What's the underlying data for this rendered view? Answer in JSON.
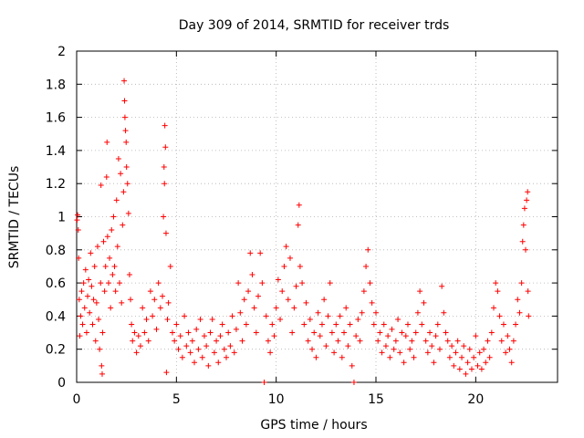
{
  "chart_data": {
    "type": "scatter",
    "title": "Day 309 of 2014, SRMTID for receiver trds",
    "xlabel": "GPS time / hours",
    "ylabel": "SRMTID / TECUs",
    "xlim": [
      0,
      24.1
    ],
    "ylim": [
      0,
      2
    ],
    "xticks": [
      0,
      5,
      10,
      15,
      20
    ],
    "xtick_labels": [
      "0",
      "5",
      "10",
      "15",
      "20"
    ],
    "yticks": [
      0,
      0.2,
      0.4,
      0.6,
      0.8,
      1,
      1.2,
      1.4,
      1.6,
      1.8,
      2
    ],
    "ytick_labels": [
      "0",
      "0.2",
      "0.4",
      "0.6",
      "0.8",
      "1",
      "1.2",
      "1.4",
      "1.6",
      "1.8",
      "2"
    ],
    "grid": true,
    "marker": "+",
    "marker_color": "#ff0000",
    "series": [
      {
        "name": "trds",
        "points": [
          [
            0.02,
            0.98
          ],
          [
            0.05,
            1.01
          ],
          [
            0.08,
            0.92
          ],
          [
            0.1,
            0.75
          ],
          [
            0.13,
            0.5
          ],
          [
            0.16,
            0.28
          ],
          [
            0.2,
            0.4
          ],
          [
            0.25,
            0.55
          ],
          [
            0.3,
            0.35
          ],
          [
            0.35,
            0.6
          ],
          [
            0.4,
            0.45
          ],
          [
            0.45,
            0.68
          ],
          [
            0.5,
            0.3
          ],
          [
            0.55,
            0.52
          ],
          [
            0.6,
            0.62
          ],
          [
            0.65,
            0.42
          ],
          [
            0.7,
            0.78
          ],
          [
            0.75,
            0.58
          ],
          [
            0.8,
            0.35
          ],
          [
            0.85,
            0.5
          ],
          [
            0.9,
            0.7
          ],
          [
            0.95,
            0.25
          ],
          [
            1.0,
            0.48
          ],
          [
            1.05,
            0.82
          ],
          [
            1.1,
            0.38
          ],
          [
            1.15,
            0.2
          ],
          [
            1.2,
            0.6
          ],
          [
            1.22,
            1.19
          ],
          [
            1.25,
            0.1
          ],
          [
            1.28,
            0.05
          ],
          [
            1.3,
            0.3
          ],
          [
            1.35,
            0.85
          ],
          [
            1.4,
            0.55
          ],
          [
            1.45,
            0.7
          ],
          [
            1.5,
            1.24
          ],
          [
            1.52,
            1.45
          ],
          [
            1.55,
            0.88
          ],
          [
            1.6,
            0.6
          ],
          [
            1.65,
            0.75
          ],
          [
            1.7,
            0.45
          ],
          [
            1.75,
            0.92
          ],
          [
            1.8,
            0.65
          ],
          [
            1.85,
            1.0
          ],
          [
            1.9,
            0.7
          ],
          [
            1.95,
            0.55
          ],
          [
            2.0,
            1.1
          ],
          [
            2.05,
            0.82
          ],
          [
            2.1,
            1.35
          ],
          [
            2.15,
            0.6
          ],
          [
            2.2,
            1.26
          ],
          [
            2.25,
            0.48
          ],
          [
            2.3,
            0.95
          ],
          [
            2.35,
            1.15
          ],
          [
            2.38,
            1.82
          ],
          [
            2.4,
            1.7
          ],
          [
            2.42,
            1.6
          ],
          [
            2.45,
            1.52
          ],
          [
            2.48,
            1.45
          ],
          [
            2.5,
            1.3
          ],
          [
            2.55,
            1.2
          ],
          [
            2.6,
            1.02
          ],
          [
            2.65,
            0.65
          ],
          [
            2.7,
            0.5
          ],
          [
            2.75,
            0.35
          ],
          [
            2.8,
            0.25
          ],
          [
            2.9,
            0.3
          ],
          [
            3.0,
            0.18
          ],
          [
            3.1,
            0.28
          ],
          [
            3.2,
            0.22
          ],
          [
            3.3,
            0.45
          ],
          [
            3.4,
            0.3
          ],
          [
            3.5,
            0.38
          ],
          [
            3.6,
            0.25
          ],
          [
            3.7,
            0.55
          ],
          [
            3.8,
            0.4
          ],
          [
            3.9,
            0.5
          ],
          [
            4.0,
            0.32
          ],
          [
            4.1,
            0.6
          ],
          [
            4.2,
            0.45
          ],
          [
            4.3,
            0.52
          ],
          [
            4.35,
            1.0
          ],
          [
            4.38,
            1.3
          ],
          [
            4.4,
            1.2
          ],
          [
            4.42,
            1.55
          ],
          [
            4.45,
            1.42
          ],
          [
            4.48,
            0.9
          ],
          [
            4.5,
            0.06
          ],
          [
            4.55,
            0.38
          ],
          [
            4.6,
            0.48
          ],
          [
            4.7,
            0.7
          ],
          [
            4.8,
            0.3
          ],
          [
            4.9,
            0.25
          ],
          [
            5.0,
            0.35
          ],
          [
            5.1,
            0.2
          ],
          [
            5.2,
            0.28
          ],
          [
            5.3,
            0.15
          ],
          [
            5.4,
            0.4
          ],
          [
            5.5,
            0.22
          ],
          [
            5.6,
            0.3
          ],
          [
            5.7,
            0.18
          ],
          [
            5.8,
            0.25
          ],
          [
            5.9,
            0.12
          ],
          [
            6.0,
            0.32
          ],
          [
            6.1,
            0.2
          ],
          [
            6.2,
            0.38
          ],
          [
            6.3,
            0.15
          ],
          [
            6.4,
            0.28
          ],
          [
            6.5,
            0.22
          ],
          [
            6.6,
            0.1
          ],
          [
            6.7,
            0.3
          ],
          [
            6.8,
            0.38
          ],
          [
            6.9,
            0.18
          ],
          [
            7.0,
            0.25
          ],
          [
            7.1,
            0.12
          ],
          [
            7.2,
            0.28
          ],
          [
            7.3,
            0.35
          ],
          [
            7.4,
            0.2
          ],
          [
            7.5,
            0.15
          ],
          [
            7.6,
            0.3
          ],
          [
            7.7,
            0.22
          ],
          [
            7.8,
            0.4
          ],
          [
            7.9,
            0.18
          ],
          [
            8.0,
            0.32
          ],
          [
            8.1,
            0.6
          ],
          [
            8.2,
            0.42
          ],
          [
            8.3,
            0.25
          ],
          [
            8.4,
            0.5
          ],
          [
            8.5,
            0.35
          ],
          [
            8.6,
            0.55
          ],
          [
            8.7,
            0.78
          ],
          [
            8.8,
            0.65
          ],
          [
            8.9,
            0.45
          ],
          [
            9.0,
            0.3
          ],
          [
            9.1,
            0.52
          ],
          [
            9.2,
            0.78
          ],
          [
            9.3,
            0.6
          ],
          [
            9.4,
            0.0
          ],
          [
            9.5,
            0.4
          ],
          [
            9.6,
            0.25
          ],
          [
            9.7,
            0.18
          ],
          [
            9.8,
            0.35
          ],
          [
            9.9,
            0.28
          ],
          [
            10.0,
            0.45
          ],
          [
            10.1,
            0.62
          ],
          [
            10.2,
            0.38
          ],
          [
            10.3,
            0.55
          ],
          [
            10.4,
            0.7
          ],
          [
            10.5,
            0.82
          ],
          [
            10.6,
            0.5
          ],
          [
            10.7,
            0.75
          ],
          [
            10.8,
            0.3
          ],
          [
            10.9,
            0.45
          ],
          [
            11.0,
            0.58
          ],
          [
            11.1,
            0.95
          ],
          [
            11.15,
            1.07
          ],
          [
            11.2,
            0.7
          ],
          [
            11.3,
            0.6
          ],
          [
            11.4,
            0.35
          ],
          [
            11.5,
            0.48
          ],
          [
            11.6,
            0.25
          ],
          [
            11.7,
            0.38
          ],
          [
            11.8,
            0.2
          ],
          [
            11.9,
            0.3
          ],
          [
            12.0,
            0.15
          ],
          [
            12.1,
            0.42
          ],
          [
            12.2,
            0.28
          ],
          [
            12.3,
            0.35
          ],
          [
            12.4,
            0.5
          ],
          [
            12.5,
            0.22
          ],
          [
            12.6,
            0.4
          ],
          [
            12.7,
            0.6
          ],
          [
            12.8,
            0.3
          ],
          [
            12.9,
            0.18
          ],
          [
            13.0,
            0.35
          ],
          [
            13.1,
            0.25
          ],
          [
            13.2,
            0.4
          ],
          [
            13.3,
            0.15
          ],
          [
            13.4,
            0.3
          ],
          [
            13.5,
            0.45
          ],
          [
            13.6,
            0.22
          ],
          [
            13.7,
            0.35
          ],
          [
            13.8,
            0.1
          ],
          [
            13.9,
            0.0
          ],
          [
            14.0,
            0.28
          ],
          [
            14.1,
            0.38
          ],
          [
            14.2,
            0.25
          ],
          [
            14.3,
            0.42
          ],
          [
            14.4,
            0.55
          ],
          [
            14.5,
            0.7
          ],
          [
            14.6,
            0.8
          ],
          [
            14.7,
            0.6
          ],
          [
            14.8,
            0.48
          ],
          [
            14.9,
            0.35
          ],
          [
            15.0,
            0.42
          ],
          [
            15.1,
            0.25
          ],
          [
            15.2,
            0.3
          ],
          [
            15.3,
            0.18
          ],
          [
            15.4,
            0.35
          ],
          [
            15.5,
            0.22
          ],
          [
            15.6,
            0.28
          ],
          [
            15.7,
            0.15
          ],
          [
            15.8,
            0.32
          ],
          [
            15.9,
            0.2
          ],
          [
            16.0,
            0.25
          ],
          [
            16.1,
            0.38
          ],
          [
            16.2,
            0.18
          ],
          [
            16.3,
            0.3
          ],
          [
            16.4,
            0.12
          ],
          [
            16.5,
            0.28
          ],
          [
            16.6,
            0.35
          ],
          [
            16.7,
            0.2
          ],
          [
            16.8,
            0.25
          ],
          [
            16.9,
            0.15
          ],
          [
            17.0,
            0.3
          ],
          [
            17.1,
            0.42
          ],
          [
            17.2,
            0.55
          ],
          [
            17.3,
            0.35
          ],
          [
            17.4,
            0.48
          ],
          [
            17.5,
            0.25
          ],
          [
            17.6,
            0.18
          ],
          [
            17.7,
            0.3
          ],
          [
            17.8,
            0.22
          ],
          [
            17.9,
            0.12
          ],
          [
            18.0,
            0.28
          ],
          [
            18.1,
            0.35
          ],
          [
            18.2,
            0.2
          ],
          [
            18.3,
            0.58
          ],
          [
            18.4,
            0.42
          ],
          [
            18.5,
            0.3
          ],
          [
            18.6,
            0.25
          ],
          [
            18.7,
            0.15
          ],
          [
            18.8,
            0.22
          ],
          [
            18.9,
            0.1
          ],
          [
            19.0,
            0.18
          ],
          [
            19.1,
            0.25
          ],
          [
            19.2,
            0.08
          ],
          [
            19.3,
            0.15
          ],
          [
            19.4,
            0.22
          ],
          [
            19.5,
            0.05
          ],
          [
            19.6,
            0.12
          ],
          [
            19.7,
            0.2
          ],
          [
            19.8,
            0.08
          ],
          [
            19.9,
            0.15
          ],
          [
            20.0,
            0.28
          ],
          [
            20.1,
            0.1
          ],
          [
            20.2,
            0.18
          ],
          [
            20.3,
            0.08
          ],
          [
            20.4,
            0.2
          ],
          [
            20.5,
            0.12
          ],
          [
            20.6,
            0.25
          ],
          [
            20.7,
            0.15
          ],
          [
            20.8,
            0.3
          ],
          [
            20.9,
            0.45
          ],
          [
            21.0,
            0.6
          ],
          [
            21.1,
            0.55
          ],
          [
            21.2,
            0.4
          ],
          [
            21.3,
            0.25
          ],
          [
            21.4,
            0.35
          ],
          [
            21.5,
            0.18
          ],
          [
            21.6,
            0.28
          ],
          [
            21.7,
            0.2
          ],
          [
            21.8,
            0.12
          ],
          [
            21.9,
            0.25
          ],
          [
            22.0,
            0.35
          ],
          [
            22.1,
            0.5
          ],
          [
            22.2,
            0.42
          ],
          [
            22.3,
            0.6
          ],
          [
            22.35,
            0.85
          ],
          [
            22.4,
            0.95
          ],
          [
            22.45,
            1.05
          ],
          [
            22.5,
            0.8
          ],
          [
            22.55,
            1.1
          ],
          [
            22.6,
            1.15
          ],
          [
            22.62,
            0.55
          ],
          [
            22.65,
            0.4
          ]
        ]
      }
    ]
  }
}
